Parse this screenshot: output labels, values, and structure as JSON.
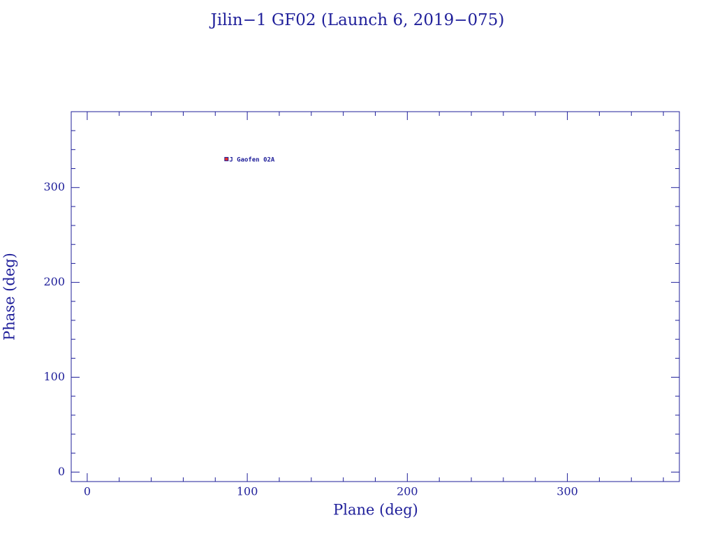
{
  "chart_data": {
    "type": "scatter",
    "title": "Jilin−1 GF02 (Launch 6, 2019−075)",
    "x_label": "Plane (deg)",
    "y_label": "Phase (deg)",
    "xlim": [
      -10,
      370
    ],
    "ylim": [
      -10,
      380
    ],
    "xticks": [
      0,
      100,
      200,
      300
    ],
    "yticks": [
      0,
      100,
      200,
      300
    ],
    "x_minor_ticks": [
      20,
      40,
      60,
      80,
      120,
      140,
      160,
      180,
      220,
      240,
      260,
      280,
      320,
      340,
      360
    ],
    "y_minor_ticks": [
      20,
      40,
      60,
      80,
      120,
      140,
      160,
      180,
      220,
      240,
      260,
      280,
      320,
      340,
      360
    ],
    "axis_color": "#1f1f9a",
    "series": [
      {
        "name": "J Gaofen 02A",
        "color": "#e8312a",
        "x": [
          87
        ],
        "values": [
          330
        ]
      }
    ]
  }
}
